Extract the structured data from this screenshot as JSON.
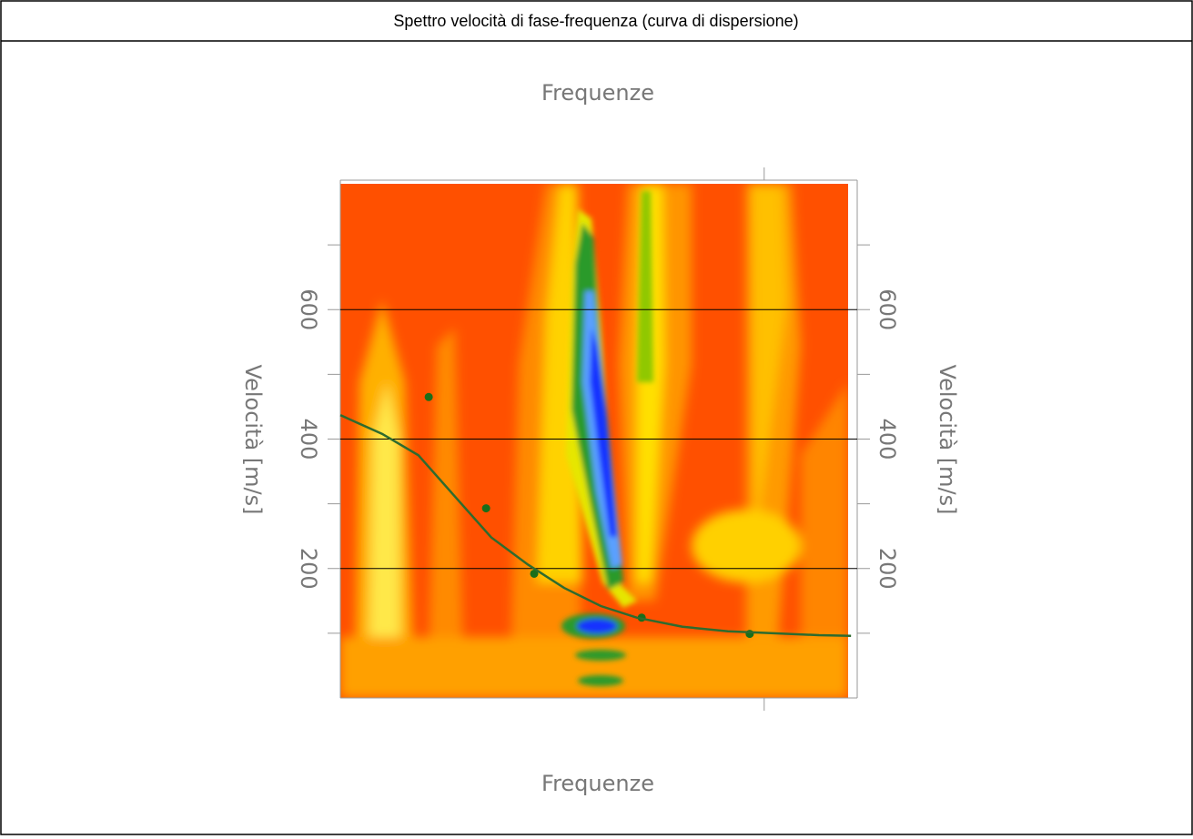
{
  "chart_data": {
    "type": "scatter",
    "title": "Spettro velocità di fase-frequenza (curva di dispersione)",
    "top_axis_label": "Frequenze",
    "xlabel": "Frequenze",
    "ylabel": "Velocità [m/s]",
    "y2label": "Velocità [m/s]",
    "xlim": [
      0,
      100
    ],
    "ylim": [
      0,
      800
    ],
    "yticks": [
      200,
      400,
      600
    ],
    "minor_yticks": [
      100,
      300,
      500,
      700
    ],
    "minor_xticks": [
      82
    ],
    "grid": true,
    "series": [
      {
        "kind": "points",
        "color": "#1a6e1a",
        "x": [
          17.1,
          28.2,
          37.5,
          58.3,
          79.2
        ],
        "values": [
          465,
          293,
          192,
          124,
          99
        ]
      },
      {
        "kind": "curve",
        "color": "#2e6b2e",
        "x": [
          0,
          8.1,
          15.1,
          22.2,
          29.2,
          36.3,
          43.3,
          50.4,
          57.4,
          66.2,
          75,
          83.8,
          92.6,
          98.8
        ],
        "values": [
          437,
          408,
          375,
          311,
          248,
          206,
          170,
          142,
          124,
          110,
          103,
          100,
          97,
          96
        ]
      }
    ]
  }
}
